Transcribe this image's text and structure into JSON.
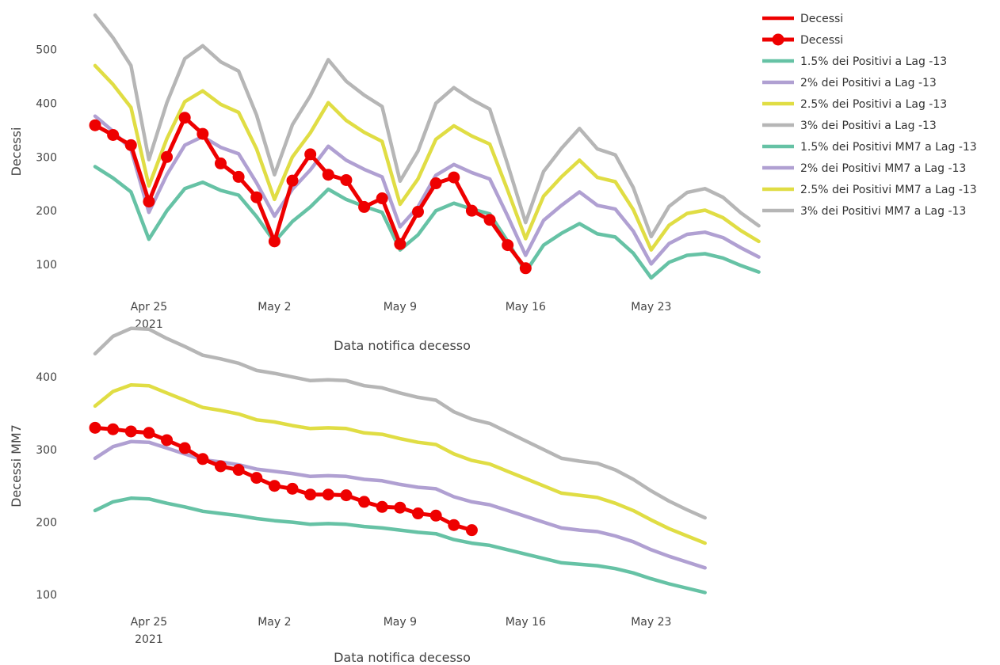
{
  "colors": {
    "green": "#66c2a5",
    "purple": "#b0a0d2",
    "yellow": "#e0dd44",
    "gray": "#b6b6b6",
    "red": "#ee0000"
  },
  "legend": [
    {
      "label": "Decessi",
      "color": "#ee0000",
      "marker": false
    },
    {
      "label": "Decessi",
      "color": "#ee0000",
      "marker": true
    },
    {
      "label": "1.5% dei Positivi a Lag -13",
      "color": "#66c2a5",
      "marker": false
    },
    {
      "label": "2% dei Positivi a Lag -13",
      "color": "#b0a0d2",
      "marker": false
    },
    {
      "label": "2.5% dei Positivi a Lag -13",
      "color": "#e0dd44",
      "marker": false
    },
    {
      "label": "3% dei Positivi a Lag -13",
      "color": "#b6b6b6",
      "marker": false
    },
    {
      "label": "1.5% dei Positivi MM7 a Lag -13",
      "color": "#66c2a5",
      "marker": false
    },
    {
      "label": "2% dei Positivi MM7 a Lag -13",
      "color": "#b0a0d2",
      "marker": false
    },
    {
      "label": "2.5% dei Positivi MM7 a Lag -13",
      "color": "#e0dd44",
      "marker": false
    },
    {
      "label": "3% dei Positivi MM7 a Lag -13",
      "color": "#b6b6b6",
      "marker": false
    }
  ],
  "chart_data": [
    {
      "type": "line",
      "ylabel": "Decessi",
      "xlabel": "Data notifica decesso",
      "x_start": "2021-04-22",
      "xlim": [
        "2021-04-22",
        "2021-05-28"
      ],
      "ylim": [
        50,
        570
      ],
      "yticks": [
        100,
        200,
        300,
        400,
        500
      ],
      "xticks": [
        {
          "date": "2021-04-25",
          "label": "Apr 25",
          "sub": "2021"
        },
        {
          "date": "2021-05-02",
          "label": "May 2",
          "sub": ""
        },
        {
          "date": "2021-05-09",
          "label": "May 9",
          "sub": ""
        },
        {
          "date": "2021-05-16",
          "label": "May 16",
          "sub": ""
        },
        {
          "date": "2021-05-23",
          "label": "May 23",
          "sub": ""
        }
      ],
      "series": [
        {
          "name": "1.5% dei Positivi a Lag -13",
          "color": "#66c2a5",
          "marker": false,
          "values": [
            282,
            261,
            235,
            147,
            200,
            241,
            253,
            238,
            229,
            189,
            142,
            180,
            207,
            240,
            221,
            208,
            197,
            127,
            155,
            200,
            214,
            203,
            194,
            143,
            86,
            136,
            158,
            176,
            157,
            151,
            121,
            75,
            104,
            117,
            120,
            112,
            98,
            86
          ]
        },
        {
          "name": "2% dei Positivi a Lag -13",
          "color": "#b0a0d2",
          "marker": false,
          "values": [
            376,
            348,
            314,
            197,
            267,
            322,
            338,
            318,
            306,
            252,
            190,
            240,
            276,
            320,
            294,
            277,
            263,
            170,
            207,
            266,
            286,
            271,
            259,
            190,
            117,
            182,
            210,
            235,
            210,
            203,
            162,
            101,
            139,
            156,
            160,
            150,
            131,
            114
          ]
        },
        {
          "name": "2.5% dei Positivi a Lag -13",
          "color": "#e0dd44",
          "marker": false,
          "values": [
            470,
            435,
            392,
            246,
            334,
            403,
            423,
            398,
            383,
            315,
            221,
            300,
            345,
            401,
            368,
            346,
            329,
            212,
            259,
            333,
            358,
            339,
            324,
            238,
            148,
            227,
            263,
            294,
            262,
            254,
            202,
            127,
            173,
            195,
            201,
            187,
            163,
            143
          ]
        },
        {
          "name": "3% dei Positivi a Lag -13",
          "color": "#b6b6b6",
          "marker": false,
          "values": [
            564,
            522,
            470,
            295,
            401,
            483,
            507,
            477,
            460,
            378,
            267,
            360,
            414,
            481,
            441,
            415,
            394,
            255,
            311,
            400,
            429,
            407,
            389,
            286,
            178,
            273,
            316,
            353,
            315,
            304,
            243,
            152,
            208,
            234,
            241,
            225,
            196,
            172
          ]
        },
        {
          "name": "Decessi",
          "color": "#ee0000",
          "marker": true,
          "values": [
            359,
            341,
            322,
            217,
            300,
            373,
            343,
            288,
            263,
            225,
            143,
            256,
            305,
            267,
            257,
            207,
            223,
            138,
            198,
            251,
            262,
            200,
            183,
            136,
            93
          ]
        }
      ]
    },
    {
      "type": "line",
      "ylabel": "Decessi MM7",
      "xlabel": "Data notifica decesso",
      "x_start": "2021-04-22",
      "xlim": [
        "2021-04-22",
        "2021-05-28"
      ],
      "ylim": [
        85,
        470
      ],
      "yticks": [
        100,
        200,
        300,
        400
      ],
      "xticks": [
        {
          "date": "2021-04-25",
          "label": "Apr 25",
          "sub": "2021"
        },
        {
          "date": "2021-05-02",
          "label": "May 2",
          "sub": ""
        },
        {
          "date": "2021-05-09",
          "label": "May 9",
          "sub": ""
        },
        {
          "date": "2021-05-16",
          "label": "May 16",
          "sub": ""
        },
        {
          "date": "2021-05-23",
          "label": "May 23",
          "sub": ""
        }
      ],
      "series": [
        {
          "name": "1.5% dei Positivi MM7 a Lag -13",
          "color": "#66c2a5",
          "marker": false,
          "values": [
            216,
            228,
            233,
            232,
            226,
            221,
            215,
            212,
            209,
            205,
            202,
            200,
            197,
            198,
            197,
            194,
            192,
            189,
            186,
            184,
            176,
            171,
            168,
            162,
            156,
            150,
            144,
            142,
            140,
            136,
            130,
            122,
            115,
            109,
            103
          ]
        },
        {
          "name": "2% dei Positivi MM7 a Lag -13",
          "color": "#b0a0d2",
          "marker": false,
          "values": [
            288,
            304,
            311,
            310,
            302,
            294,
            286,
            283,
            279,
            273,
            270,
            267,
            263,
            264,
            263,
            259,
            257,
            252,
            248,
            246,
            235,
            228,
            224,
            216,
            208,
            200,
            192,
            189,
            187,
            181,
            173,
            162,
            153,
            145,
            137
          ]
        },
        {
          "name": "2.5% dei Positivi MM7 a Lag -13",
          "color": "#e0dd44",
          "marker": false,
          "values": [
            360,
            380,
            389,
            388,
            378,
            368,
            358,
            354,
            349,
            341,
            338,
            333,
            329,
            330,
            329,
            323,
            321,
            315,
            310,
            307,
            294,
            285,
            280,
            270,
            260,
            250,
            240,
            237,
            234,
            226,
            216,
            203,
            191,
            181,
            171
          ]
        },
        {
          "name": "3% dei Positivi MM7 a Lag -13",
          "color": "#b6b6b6",
          "marker": false,
          "values": [
            432,
            456,
            467,
            466,
            453,
            442,
            430,
            425,
            419,
            409,
            405,
            400,
            395,
            396,
            395,
            388,
            385,
            378,
            372,
            368,
            352,
            342,
            336,
            324,
            312,
            300,
            288,
            284,
            281,
            272,
            259,
            243,
            229,
            217,
            206
          ]
        },
        {
          "name": "Decessi",
          "color": "#ee0000",
          "marker": true,
          "values": [
            330,
            328,
            325,
            323,
            313,
            302,
            287,
            277,
            272,
            261,
            250,
            246,
            238,
            238,
            237,
            228,
            221,
            220,
            212,
            209,
            196,
            189
          ]
        }
      ]
    }
  ]
}
